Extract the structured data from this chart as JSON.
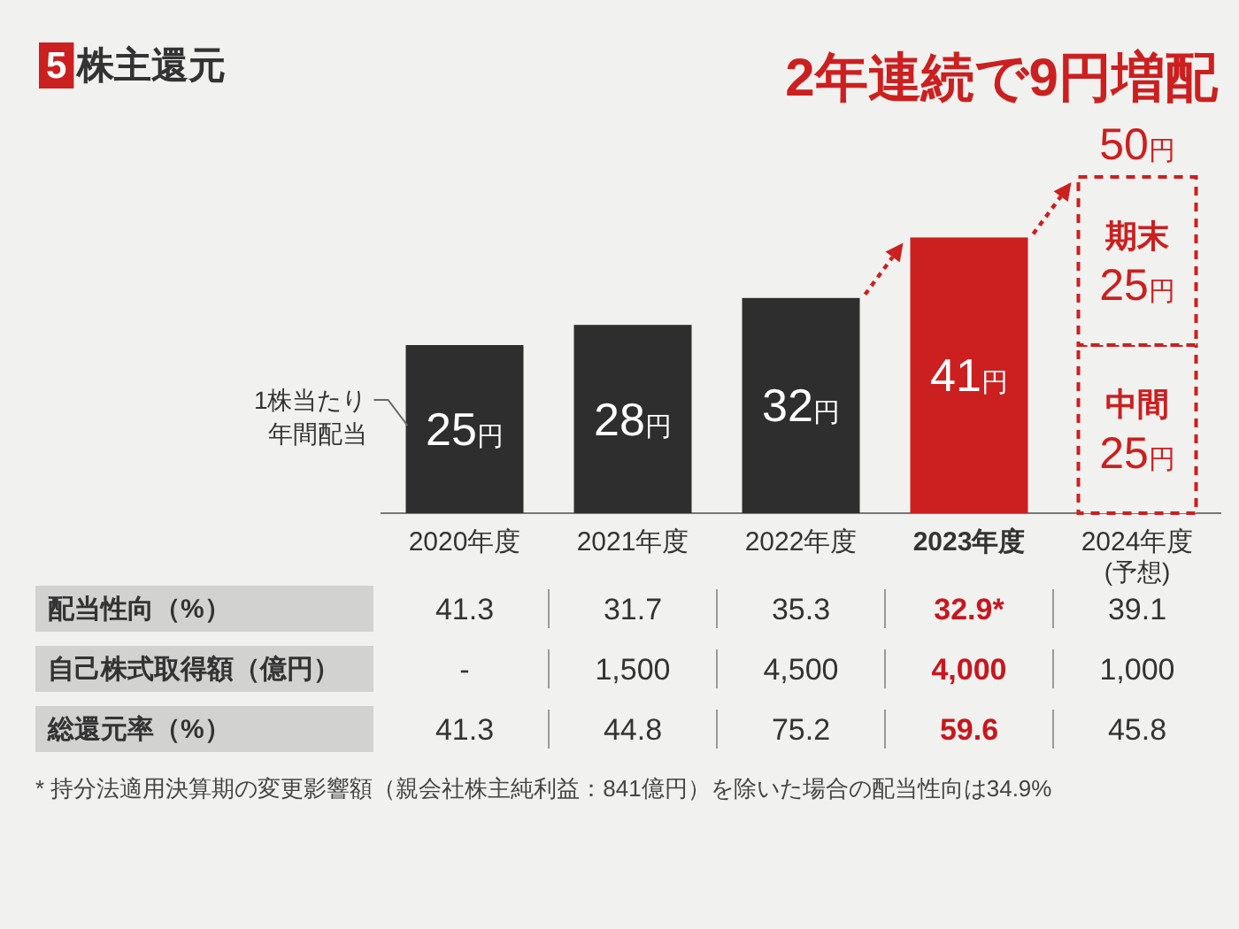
{
  "chart_data": [
    {
      "type": "bar",
      "title": "5 株主還元",
      "subtitle": "2年連続で9円増配",
      "ylabel": "1株当たり年間配当",
      "categories": [
        "2020年度",
        "2021年度",
        "2022年度",
        "2023年度",
        "2024年度\n(予想)"
      ],
      "stacked": true,
      "series": [
        {
          "colors": [
            "#2e2e2e",
            "#2e2e2e",
            "#2e2e2e",
            "#cc1f1f",
            null
          ],
          "values": [
            25,
            28,
            32,
            41,
            null
          ],
          "value_labels": [
            "25円",
            "28円",
            "32円",
            "41円",
            null
          ]
        },
        {
          "name": "中間",
          "color": "#cc1f1f",
          "line_style": "dashed",
          "values": [
            null,
            null,
            null,
            null,
            25
          ],
          "value_labels": [
            null,
            null,
            null,
            null,
            "25円"
          ]
        },
        {
          "name": "期末",
          "color": "#cc1f1f",
          "line_style": "dashed",
          "values": [
            null,
            null,
            null,
            null,
            25
          ],
          "value_labels": [
            null,
            null,
            null,
            null,
            "25円"
          ]
        }
      ],
      "totals": [
        null,
        null,
        null,
        null,
        "50円"
      ]
    },
    {
      "type": "heatmap",
      "categories": [
        null,
        null,
        null,
        null,
        null
      ],
      "y_categories": [
        "配当性向（%）",
        "自己株式取得額（億円）",
        "総還元率（%）"
      ],
      "cells": [
        [
          41.3,
          31.7,
          35.3,
          32.9,
          39.1
        ],
        [
          null,
          1500,
          4500,
          4000,
          1000
        ],
        [
          41.3,
          44.8,
          75.2,
          59.6,
          45.8
        ]
      ],
      "cell_labels": [
        [
          "41.3",
          "31.7",
          "35.3",
          "32.9*",
          "39.1"
        ],
        [
          "-",
          "1,500",
          "4,500",
          "4,000",
          "1,000"
        ],
        [
          "41.3",
          "44.8",
          "75.2",
          "59.6",
          "45.8"
        ]
      ],
      "colors": [
        "#333333",
        "#333333",
        "#333333",
        "#c8161d",
        "#333333"
      ],
      "annotations": [
        "* 持分法適用決算期の変更影響額（親会社株主純利益：841億円）を除いた場合の配当性向は34.9%"
      ]
    }
  ]
}
